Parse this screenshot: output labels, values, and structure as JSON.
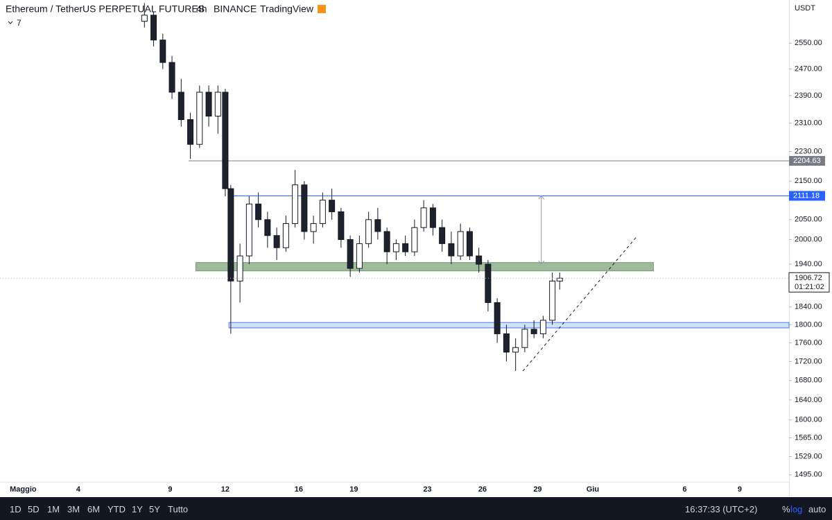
{
  "header": {
    "symbol": "Ethereum / TetherUS PERPETUAL FUTURES",
    "interval": "4h",
    "exchange": "BINANCE",
    "source": "TradingView",
    "indicator_count": "7"
  },
  "chart_data": {
    "type": "candlestick",
    "currency": "USDT",
    "log_scale": true,
    "xlim": [
      -0.26,
      42.68
    ],
    "xticks": [
      {
        "value": 1,
        "label": "Maggio"
      },
      4,
      9,
      12,
      16,
      19,
      23,
      26,
      29,
      {
        "value": 32,
        "label": "Giu"
      },
      {
        "value": 37,
        "label": "6"
      },
      {
        "value": 40,
        "label": "9"
      }
    ],
    "ylim": [
      1482,
      2690
    ],
    "yticks": [
      {
        "value": 2550,
        "label": "2550.00"
      },
      {
        "value": 2470,
        "label": "2470.00"
      },
      {
        "value": 2390,
        "label": "2390.00"
      },
      {
        "value": 2310,
        "label": "2310.00"
      },
      {
        "value": 2230,
        "label": "2230.00"
      },
      {
        "value": 2150,
        "label": "2150.00"
      },
      {
        "value": 2050,
        "label": "2050.00"
      },
      {
        "value": 2000,
        "label": "2000.00"
      },
      {
        "value": 1940,
        "label": "1940.00"
      },
      {
        "value": 1840,
        "label": "1840.00"
      },
      {
        "value": 1800,
        "label": "1800.00"
      },
      {
        "value": 1760,
        "label": "1760.00"
      },
      {
        "value": 1720,
        "label": "1720.00"
      },
      {
        "value": 1680,
        "label": "1680.00"
      },
      {
        "value": 1640,
        "label": "1640.00"
      },
      {
        "value": 1600,
        "label": "1600.00"
      },
      {
        "value": 1565,
        "label": "1565.00"
      },
      {
        "value": 1529,
        "label": "1529.00"
      },
      {
        "value": 1495,
        "label": "1495.00"
      }
    ],
    "up_color": "#ffffff",
    "down_color": "#1e222d",
    "x": [
      7.6,
      8.1,
      8.6,
      9.1,
      9.6,
      10.1,
      10.6,
      11.1,
      11.6,
      12.0,
      12.3,
      12.8,
      13.3,
      13.8,
      14.3,
      14.8,
      15.3,
      15.8,
      16.3,
      16.8,
      17.3,
      17.8,
      18.3,
      18.8,
      19.3,
      19.8,
      20.3,
      20.8,
      21.3,
      21.8,
      22.3,
      22.8,
      23.3,
      23.8,
      24.3,
      24.8,
      25.3,
      25.8,
      26.3,
      26.8,
      27.3,
      27.8,
      28.3,
      28.8,
      29.3,
      29.8,
      30.2
    ],
    "open": [
      2620,
      2640,
      2560,
      2490,
      2400,
      2320,
      2250,
      2400,
      2330,
      2400,
      2130,
      1900,
      1960,
      2090,
      2050,
      2010,
      1980,
      2040,
      2140,
      2020,
      2040,
      2100,
      2070,
      2000,
      1930,
      1990,
      2050,
      2020,
      1970,
      1990,
      1970,
      2030,
      2080,
      2030,
      1990,
      1960,
      2020,
      1960,
      1940,
      1850,
      1780,
      1740,
      1750,
      1790,
      1780,
      1810,
      1900
    ],
    "high": [
      2680,
      2650,
      2580,
      2510,
      2440,
      2340,
      2420,
      2420,
      2420,
      2410,
      2140,
      1990,
      2110,
      2120,
      2070,
      2030,
      2060,
      2180,
      2150,
      2060,
      2120,
      2130,
      2080,
      2010,
      2010,
      2070,
      2080,
      2030,
      2000,
      2010,
      2050,
      2100,
      2090,
      2050,
      2020,
      2040,
      2030,
      1980,
      1950,
      1860,
      1800,
      1770,
      1800,
      1810,
      1820,
      1920,
      1920
    ],
    "low": [
      2600,
      2540,
      2470,
      2380,
      2300,
      2210,
      2240,
      2300,
      2280,
      2110,
      1780,
      1850,
      1940,
      2030,
      1980,
      1950,
      1970,
      2030,
      2000,
      1990,
      2030,
      2050,
      1980,
      1910,
      1920,
      1980,
      2000,
      1940,
      1950,
      1960,
      1960,
      2020,
      2010,
      1970,
      1940,
      1950,
      1950,
      1920,
      1830,
      1760,
      1720,
      1700,
      1740,
      1770,
      1770,
      1800,
      1880
    ],
    "close": [
      2640,
      2560,
      2490,
      2400,
      2320,
      2250,
      2400,
      2330,
      2400,
      2130,
      1900,
      1960,
      2090,
      2050,
      2010,
      1980,
      2040,
      2140,
      2020,
      2040,
      2100,
      2070,
      2000,
      1930,
      1990,
      2050,
      2020,
      1970,
      1990,
      1970,
      2030,
      2080,
      2030,
      1990,
      1960,
      2020,
      1960,
      1940,
      1850,
      1780,
      1740,
      1750,
      1790,
      1780,
      1810,
      1900,
      1906.72
    ],
    "levels": [
      {
        "value": 2204.63,
        "color": "#787b86",
        "x_start": 10
      },
      {
        "value": 2111.18,
        "color": "#2962ff",
        "x_start": 12.2
      }
    ],
    "zones": [
      {
        "low": 1924,
        "high": 1944,
        "x_start": 10.4,
        "x_end": 35.3,
        "color": "#8fb08a"
      },
      {
        "low": 1793,
        "high": 1805,
        "x_start": 12.2,
        "x_end": 42.68,
        "color": "#c9dcf5"
      }
    ],
    "trend_line": {
      "x": [
        28.2,
        34.35
      ],
      "y": [
        1700,
        2005
      ]
    },
    "measure": {
      "x": 29.2,
      "from": 2111.18,
      "to": 1940
    },
    "last_price": 1906.72,
    "countdown": "01:21:02"
  },
  "toolbar": {
    "ranges": [
      "1D",
      "5D",
      "1M",
      "3M",
      "6M",
      "YTD",
      "1Y",
      "5Y",
      "Tutto"
    ],
    "clock": "16:37:33 (UTC+2)",
    "percent": "%",
    "log": "log",
    "auto": "auto"
  }
}
